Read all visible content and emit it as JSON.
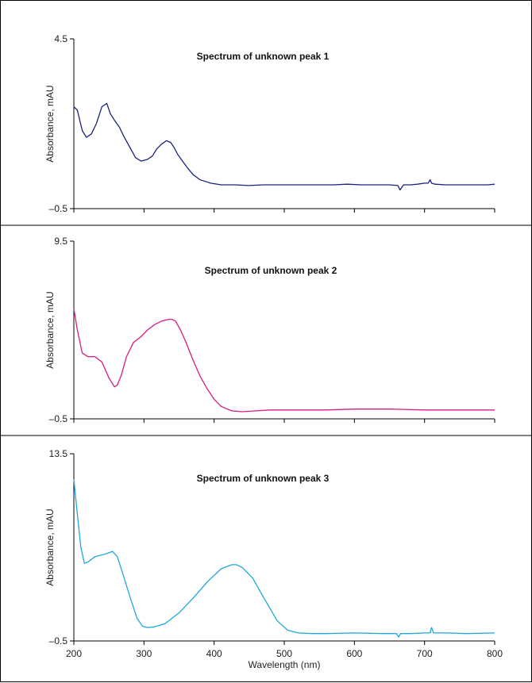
{
  "chart_data": [
    {
      "type": "line",
      "title": "Spectrum of unknown peak 1",
      "xlabel": "",
      "ylabel": "Absorbance, mAU",
      "xlim": [
        200,
        800
      ],
      "ylim": [
        -0.5,
        4.5
      ],
      "x_ticks": [
        "200",
        "300",
        "400",
        "500",
        "600",
        "700",
        "800"
      ],
      "y_tick_labels": [
        "4.5",
        "–0.5"
      ],
      "series": [
        {
          "color": "#1a237e",
          "x": [
            200,
            205,
            212,
            218,
            225,
            232,
            240,
            247,
            252,
            258,
            265,
            272,
            280,
            288,
            296,
            305,
            312,
            318,
            325,
            332,
            338,
            343,
            348,
            355,
            362,
            370,
            380,
            395,
            410,
            430,
            450,
            470,
            490,
            510,
            530,
            550,
            570,
            590,
            610,
            630,
            650,
            662,
            665,
            670,
            680,
            690,
            700,
            705,
            708,
            710,
            715,
            730,
            750,
            770,
            790,
            800
          ],
          "y": [
            2.5,
            2.4,
            1.8,
            1.6,
            1.7,
            2.0,
            2.5,
            2.6,
            2.3,
            2.1,
            1.9,
            1.6,
            1.3,
            1.0,
            0.9,
            0.95,
            1.05,
            1.25,
            1.4,
            1.5,
            1.45,
            1.3,
            1.1,
            0.9,
            0.7,
            0.5,
            0.35,
            0.25,
            0.2,
            0.2,
            0.18,
            0.2,
            0.2,
            0.2,
            0.2,
            0.2,
            0.2,
            0.22,
            0.2,
            0.2,
            0.2,
            0.18,
            0.05,
            0.2,
            0.2,
            0.22,
            0.25,
            0.25,
            0.35,
            0.25,
            0.22,
            0.2,
            0.2,
            0.2,
            0.2,
            0.22
          ]
        }
      ]
    },
    {
      "type": "line",
      "title": "Spectrum of unknown peak 2",
      "xlabel": "",
      "ylabel": "Absorbance, mAU",
      "xlim": [
        200,
        800
      ],
      "ylim": [
        -0.5,
        9.5
      ],
      "x_ticks": [
        "200",
        "300",
        "400",
        "500",
        "600",
        "700",
        "800"
      ],
      "y_tick_labels": [
        "9.5",
        "–0.5"
      ],
      "series": [
        {
          "color": "#d81b80",
          "x": [
            200,
            205,
            212,
            220,
            230,
            240,
            250,
            258,
            262,
            268,
            275,
            285,
            295,
            305,
            315,
            325,
            335,
            340,
            345,
            352,
            360,
            370,
            380,
            390,
            400,
            410,
            425,
            440,
            460,
            480,
            500,
            530,
            560,
            600,
            650,
            700,
            750,
            800
          ],
          "y": [
            5.7,
            4.5,
            3.2,
            3.0,
            3.0,
            2.7,
            1.8,
            1.3,
            1.4,
            2.0,
            3.0,
            3.8,
            4.1,
            4.5,
            4.8,
            5.0,
            5.1,
            5.1,
            5.0,
            4.5,
            3.8,
            2.8,
            1.9,
            1.2,
            0.6,
            0.2,
            -0.05,
            -0.1,
            -0.05,
            0.0,
            0.0,
            0.0,
            0.0,
            0.05,
            0.05,
            0.0,
            0.0,
            0.0
          ]
        }
      ]
    },
    {
      "type": "line",
      "title": "Spectrum of unknown peak 3",
      "xlabel": "Wavelength (nm)",
      "ylabel": "Absorbance, mAU",
      "xlim": [
        200,
        800
      ],
      "ylim": [
        -0.5,
        13.5
      ],
      "x_ticks": [
        "200",
        "300",
        "400",
        "500",
        "600",
        "700",
        "800"
      ],
      "y_tick_labels": [
        "13.5",
        "–0.5"
      ],
      "series": [
        {
          "color": "#1ea7dc",
          "x": [
            200,
            204,
            210,
            215,
            220,
            230,
            245,
            255,
            262,
            270,
            280,
            290,
            298,
            305,
            315,
            330,
            350,
            370,
            390,
            410,
            425,
            432,
            440,
            455,
            470,
            490,
            505,
            520,
            540,
            560,
            600,
            640,
            660,
            663,
            666,
            680,
            700,
            708,
            710,
            713,
            730,
            760,
            800
          ],
          "y": [
            11.6,
            9.5,
            6.5,
            5.3,
            5.4,
            5.8,
            6.0,
            6.2,
            5.8,
            4.5,
            2.8,
            1.2,
            0.6,
            0.5,
            0.55,
            0.8,
            1.6,
            2.7,
            3.9,
            4.9,
            5.2,
            5.2,
            5.0,
            4.2,
            2.8,
            1.0,
            0.3,
            0.1,
            0.05,
            0.05,
            0.1,
            0.05,
            0.05,
            -0.2,
            0.05,
            0.05,
            0.1,
            0.1,
            0.5,
            0.1,
            0.1,
            0.05,
            0.1
          ]
        }
      ]
    }
  ]
}
